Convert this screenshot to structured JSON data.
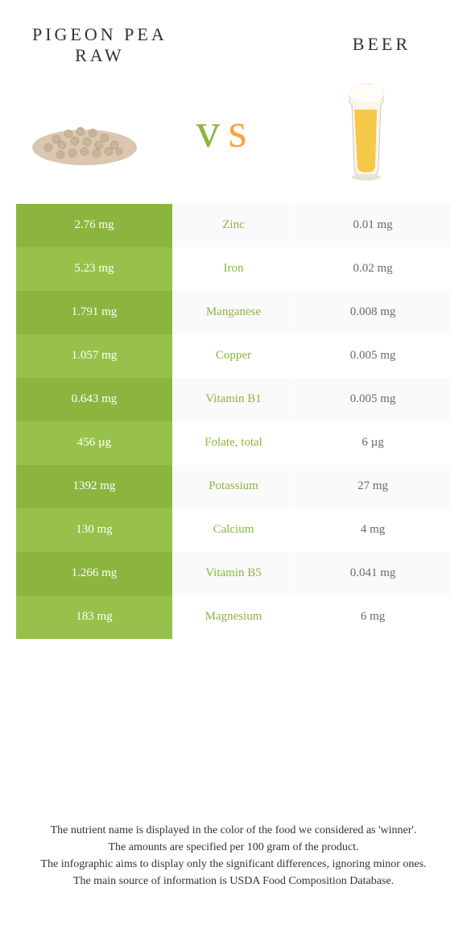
{
  "header": {
    "left_line1": "Pigeon pea",
    "left_line2": "raw",
    "right": "Beer"
  },
  "vs_label": "vs",
  "colors": {
    "pigeon_pea": "#8bb53f",
    "pigeon_pea_alt": "#97c14a",
    "beer": "#f2a93c",
    "beer_alt": "#f4b454",
    "row_bg_light": "#fafafa",
    "row_bg_white": "#ffffff",
    "mid_text": "#8bb53f",
    "right_text": "#6a6a6a"
  },
  "rows": [
    {
      "nutrient": "Zinc",
      "left": "2.76 mg",
      "right": "0.01 mg",
      "winner": "left"
    },
    {
      "nutrient": "Iron",
      "left": "5.23 mg",
      "right": "0.02 mg",
      "winner": "left"
    },
    {
      "nutrient": "Manganese",
      "left": "1.791 mg",
      "right": "0.008 mg",
      "winner": "left"
    },
    {
      "nutrient": "Copper",
      "left": "1.057 mg",
      "right": "0.005 mg",
      "winner": "left"
    },
    {
      "nutrient": "Vitamin B1",
      "left": "0.643 mg",
      "right": "0.005 mg",
      "winner": "left"
    },
    {
      "nutrient": "Folate, total",
      "left": "456 µg",
      "right": "6 µg",
      "winner": "left"
    },
    {
      "nutrient": "Potassium",
      "left": "1392 mg",
      "right": "27 mg",
      "winner": "left"
    },
    {
      "nutrient": "Calcium",
      "left": "130 mg",
      "right": "4 mg",
      "winner": "left"
    },
    {
      "nutrient": "Vitamin B5",
      "left": "1.266 mg",
      "right": "0.041 mg",
      "winner": "left"
    },
    {
      "nutrient": "Magnesium",
      "left": "183 mg",
      "right": "6 mg",
      "winner": "left"
    }
  ],
  "footer": {
    "line1": "The nutrient name is displayed in the color of the food we considered as 'winner'.",
    "line2": "The amounts are specified per 100 gram of the product.",
    "line3": "The infographic aims to display only the significant differences, ignoring minor ones.",
    "line4": "The main source of information is USDA Food Composition Database."
  }
}
